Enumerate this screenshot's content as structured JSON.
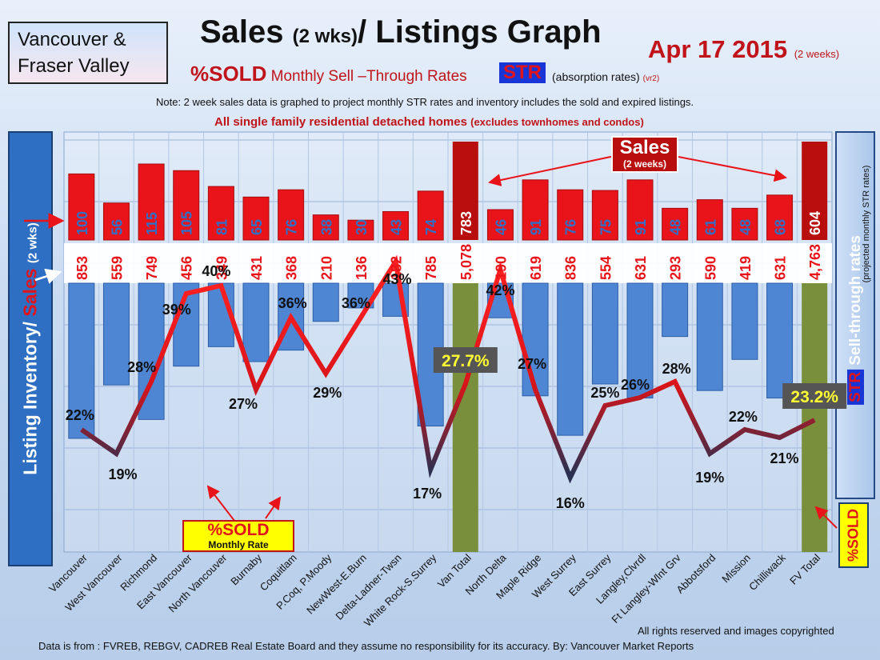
{
  "header": {
    "region": [
      "Vancouver &",
      "Fraser Valley"
    ],
    "title_main": "Sales",
    "title_mid": "(2 wks)",
    "title_end": "/ Listings Graph",
    "date": "Apr 17 2015",
    "date_note": "(2 weeks)",
    "subtitle_sold": "%SOLD",
    "subtitle_rest": "Monthly Sell –Through Rates",
    "str_badge": "STR",
    "absorption": "(absorption rates)",
    "version": "(vr2)",
    "note": "Note: 2 week sales data is graphed to project monthly STR rates and inventory includes the sold and expired listings.",
    "scope": "All single family residential detached homes",
    "scope_note": "(excludes townhomes and condos)"
  },
  "left_axis": {
    "inventory": "Listing Inventory/",
    "sales": "Sales",
    "unit": "(2 wks)"
  },
  "right_axis": {
    "str": "STR",
    "label": "Sell-through rates",
    "note": "(projected monthly STR rates)",
    "sold": "%SOLD"
  },
  "callouts": {
    "sold_title": "%SOLD",
    "sold_sub": "Monthly Rate",
    "sales_title": "Sales",
    "sales_sub": "(2 weeks)"
  },
  "footer": {
    "rights": "All rights reserved and  images copyrighted",
    "source": "Data is from : FVREB, REBGV, CADREB Real Estate Board and they assume no responsibility for its accuracy. By: Vancouver Market Reports"
  },
  "colors": {
    "sales": "#e8141a",
    "sales_total": "#b80e0e",
    "inventory": "#4f86d4",
    "total_inventory": "#7a8f3b",
    "str_line": "#e8141a",
    "str_badge": "#1836d6"
  },
  "chart_data": {
    "type": "bar",
    "categories": [
      "Vancouver",
      "West Vancouver",
      "Richmond",
      "East Vancouver",
      "North Vancouver",
      "Burnaby",
      "Coquitlam",
      "P.Coq, P.Moody",
      "NewWest-E.Burn",
      "Delta-Ladner-Twsn",
      "White Rock-S.Surrey",
      "Van Total",
      "North Delta",
      "Maple Ridge",
      "West Surrey",
      "East Surrey",
      "Langley,Clvrdl",
      "Ft Langley-Wlnt Grv",
      "Abbotsford",
      "Mission",
      "Chilliwack",
      "FV Total"
    ],
    "series": [
      {
        "name": "Sales",
        "values": [
          100,
          56,
          115,
          105,
          81,
          65,
          76,
          38,
          30,
          43,
          74,
          783,
          46,
          91,
          76,
          75,
          91,
          48,
          61,
          48,
          68,
          604
        ]
      },
      {
        "name": "Listing Inventory",
        "values": [
          853,
          559,
          749,
          456,
          349,
          431,
          368,
          210,
          136,
          182,
          785,
          5078,
          190,
          619,
          836,
          554,
          631,
          293,
          590,
          419,
          631,
          4763
        ]
      },
      {
        "name": "Sell-through rates",
        "values": [
          22,
          19,
          28,
          39,
          40,
          27,
          36,
          29,
          36,
          43,
          17,
          27.7,
          42,
          27,
          16,
          25,
          26,
          28,
          19,
          22,
          21,
          23.2
        ]
      }
    ],
    "str_labels": [
      "22%",
      "19%",
      "28%",
      "39%",
      "40%",
      "27%",
      "36%",
      "29%",
      "36%",
      "43%",
      "17%",
      "27.7%",
      "42%",
      "27%",
      "16%",
      "25%",
      "26%",
      "28%",
      "19%",
      "22%",
      "21%",
      "23.2%"
    ],
    "inventory_labels": [
      "853",
      "559",
      "749",
      "456",
      "349",
      "431",
      "368",
      "210",
      "136",
      "182",
      "785",
      "5,078",
      "190",
      "619",
      "836",
      "554",
      "631",
      "293",
      "590",
      "419",
      "631",
      "4,763"
    ],
    "totals": [
      "Van Total",
      "FV Total"
    ],
    "highlight_labels": [
      "27.7%",
      "23.2%"
    ]
  }
}
